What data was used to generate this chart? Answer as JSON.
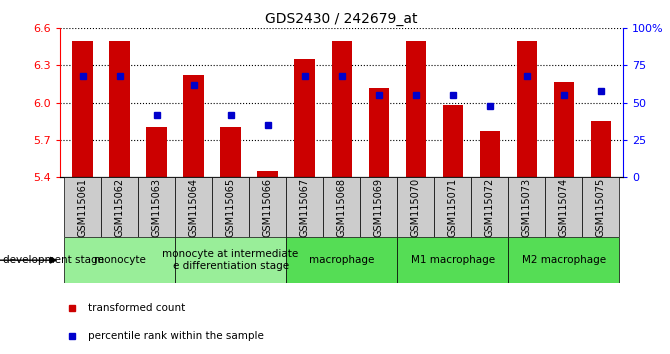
{
  "title": "GDS2430 / 242679_at",
  "samples": [
    "GSM115061",
    "GSM115062",
    "GSM115063",
    "GSM115064",
    "GSM115065",
    "GSM115066",
    "GSM115067",
    "GSM115068",
    "GSM115069",
    "GSM115070",
    "GSM115071",
    "GSM115072",
    "GSM115073",
    "GSM115074",
    "GSM115075"
  ],
  "bar_values": [
    6.5,
    6.5,
    5.8,
    6.22,
    5.8,
    5.45,
    6.35,
    6.5,
    6.12,
    6.5,
    5.98,
    5.77,
    6.5,
    6.17,
    5.85
  ],
  "dot_values": [
    68,
    68,
    42,
    62,
    42,
    35,
    68,
    68,
    55,
    55,
    55,
    48,
    68,
    55,
    58
  ],
  "ylim": [
    5.4,
    6.6
  ],
  "y2lim": [
    0,
    100
  ],
  "yticks": [
    5.4,
    5.7,
    6.0,
    6.3,
    6.6
  ],
  "y2ticks": [
    0,
    25,
    50,
    75,
    100
  ],
  "bar_color": "#CC0000",
  "dot_color": "#0000CC",
  "bar_bottom": 5.4,
  "group_display": [
    {
      "label": "monocyte",
      "start": 0,
      "end": 2,
      "color": "#99ee99"
    },
    {
      "label": "monocyte at intermediate\ne differentiation stage",
      "start": 3,
      "end": 5,
      "color": "#99ee99"
    },
    {
      "label": "macrophage",
      "start": 6,
      "end": 8,
      "color": "#55dd55"
    },
    {
      "label": "M1 macrophage",
      "start": 9,
      "end": 11,
      "color": "#55dd55"
    },
    {
      "label": "M2 macrophage",
      "start": 12,
      "end": 14,
      "color": "#55dd55"
    }
  ],
  "tick_label_fontsize": 7,
  "group_label_fontsize": 7.5,
  "title_fontsize": 10,
  "legend_items": [
    "transformed count",
    "percentile rank within the sample"
  ],
  "dev_stage_label": "development stage"
}
